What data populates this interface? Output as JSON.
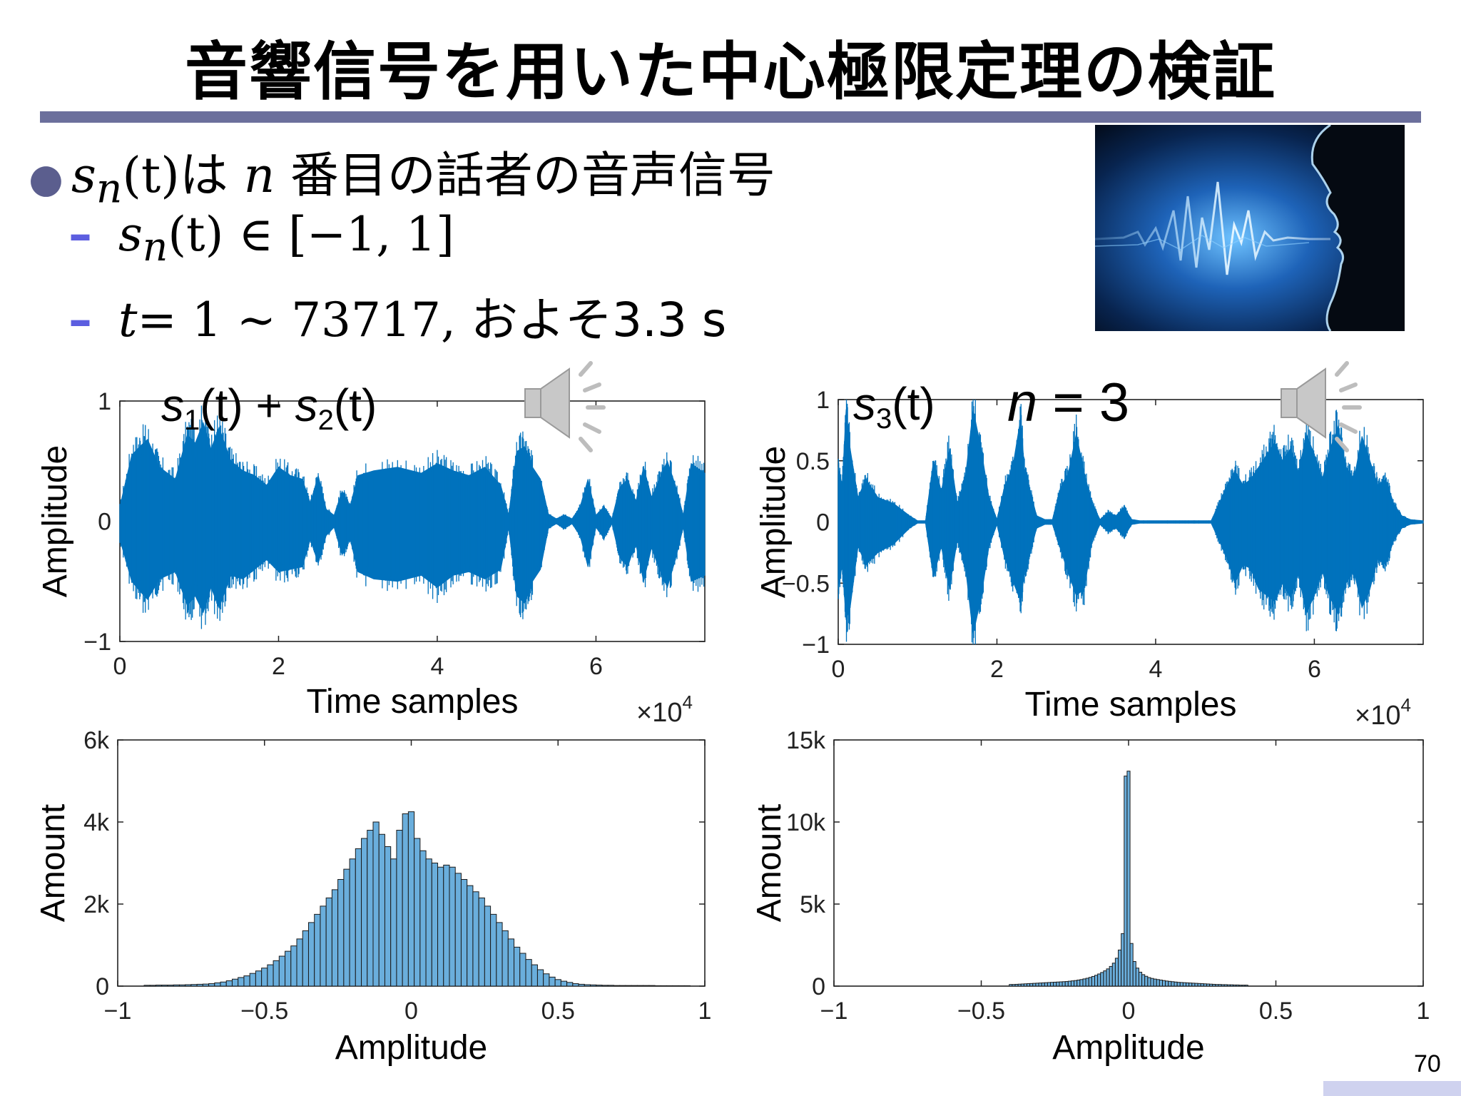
{
  "title": "音響信号を用いた中心極限定理の検証",
  "bullets": {
    "b1": {
      "math": "s",
      "sub": "n",
      "arg": "(t)",
      "text1": "は",
      "n": "n",
      "text2": "番目の話者の音声信号"
    },
    "sub1": {
      "math": "s",
      "sub": "n",
      "rest": "(t) ∈ [−1, 1]"
    },
    "sub2": {
      "t": "t",
      "eq": "= 1 ∼ 73717,",
      "text": " およそ3.3 s"
    }
  },
  "slide_number": "70",
  "icons": [
    "bullet-dot-icon",
    "speaker-icon",
    "voice-wave-photo"
  ],
  "colors": {
    "series": "#0072bd",
    "hist": "#6aaedc",
    "title_rule": "#6b6f9c",
    "dash": "#5c5ee0",
    "footer_bar": "#cfd2ef"
  },
  "chart_data": [
    {
      "type": "line",
      "overlay_label": {
        "s1": "s",
        "sub1": "1",
        "mid": "(t) + ",
        "s2": "s",
        "sub2": "2",
        "end": "(t)"
      },
      "xlabel": "Time samples",
      "ylabel": "Amplitude",
      "x_multiplier": "×10",
      "x_multiplier_exp": "4",
      "xlim": [
        0,
        73717
      ],
      "ylim": [
        -1,
        1
      ],
      "xticks": [
        0,
        20000,
        40000,
        60000
      ],
      "xticklabels": [
        "0",
        "2",
        "4",
        "6"
      ],
      "yticks": [
        -1,
        0,
        1
      ],
      "yticklabels": [
        "−1",
        "0",
        "1"
      ],
      "envelope": {
        "x": [
          0,
          1500,
          2500,
          3500,
          5000,
          7000,
          8500,
          9500,
          10500,
          11500,
          12500,
          14000,
          15500,
          17000,
          18500,
          20000,
          21500,
          23000,
          24000,
          25000,
          26000,
          27000,
          28000,
          29000,
          30000,
          32000,
          35000,
          38000,
          40000,
          42000,
          44000,
          46000,
          48000,
          49000,
          50000,
          51000,
          52000,
          53000,
          54000,
          55000,
          56000,
          57000,
          58000,
          59000,
          60000,
          61000,
          62000,
          63000,
          64000,
          65000,
          66000,
          67000,
          68000,
          69000,
          70000,
          71000,
          72000,
          73717
        ],
        "upper": [
          0.12,
          0.55,
          0.62,
          0.68,
          0.45,
          0.35,
          0.72,
          0.65,
          0.82,
          0.6,
          0.78,
          0.5,
          0.42,
          0.38,
          0.3,
          0.45,
          0.38,
          0.35,
          0.15,
          0.38,
          0.1,
          0.05,
          0.25,
          0.12,
          0.38,
          0.42,
          0.45,
          0.4,
          0.48,
          0.42,
          0.38,
          0.45,
          0.3,
          0.05,
          0.58,
          0.62,
          0.45,
          0.35,
          0.06,
          0.02,
          0.05,
          0.02,
          0.12,
          0.35,
          0.05,
          0.12,
          0.02,
          0.28,
          0.35,
          0.15,
          0.45,
          0.2,
          0.35,
          0.5,
          0.3,
          0.05,
          0.48,
          0.4
        ],
        "lower": [
          -0.15,
          -0.5,
          -0.58,
          -0.65,
          -0.48,
          -0.42,
          -0.7,
          -0.62,
          -0.76,
          -0.55,
          -0.72,
          -0.45,
          -0.48,
          -0.4,
          -0.32,
          -0.42,
          -0.4,
          -0.38,
          -0.15,
          -0.35,
          -0.12,
          -0.05,
          -0.28,
          -0.14,
          -0.42,
          -0.48,
          -0.5,
          -0.45,
          -0.55,
          -0.45,
          -0.42,
          -0.48,
          -0.4,
          -0.05,
          -0.62,
          -0.68,
          -0.5,
          -0.4,
          -0.06,
          -0.02,
          -0.06,
          -0.02,
          -0.12,
          -0.38,
          -0.05,
          -0.14,
          -0.02,
          -0.3,
          -0.38,
          -0.18,
          -0.5,
          -0.22,
          -0.4,
          -0.55,
          -0.32,
          -0.05,
          -0.5,
          -0.45
        ]
      }
    },
    {
      "type": "line",
      "overlay_label": {
        "s": "s",
        "sub": "3",
        "end": "(t)",
        "n": "n",
        "eq": " = 3"
      },
      "xlabel": "Time samples",
      "ylabel": "Amplitude",
      "x_multiplier": "×10",
      "x_multiplier_exp": "4",
      "xlim": [
        0,
        73717
      ],
      "ylim": [
        -1,
        1
      ],
      "xticks": [
        0,
        20000,
        40000,
        60000
      ],
      "xticklabels": [
        "0",
        "2",
        "4",
        "6"
      ],
      "yticks": [
        -1,
        -0.5,
        0,
        0.5,
        1
      ],
      "yticklabels": [
        "−1",
        "−0.5",
        "0",
        "0.5",
        "1"
      ],
      "envelope": {
        "x": [
          0,
          500,
          1000,
          1500,
          2500,
          3500,
          5000,
          7000,
          9000,
          10000,
          11000,
          12000,
          13000,
          14000,
          15000,
          16000,
          17000,
          18000,
          19000,
          20000,
          21000,
          22000,
          23000,
          23500,
          24000,
          25000,
          26000,
          27000,
          28000,
          29000,
          30000,
          31000,
          32000,
          33000,
          34000,
          35000,
          36000,
          37000,
          38000,
          39000,
          40000,
          41000,
          42000,
          43000,
          44000,
          45000,
          46000,
          47000,
          48000,
          49000,
          50000,
          51000,
          52000,
          53000,
          54000,
          55000,
          56000,
          57000,
          58000,
          59000,
          60000,
          61000,
          62000,
          63000,
          64000,
          65000,
          66000,
          67000,
          68000,
          69000,
          70000,
          71000,
          72000,
          73717
        ],
        "upper": [
          0.45,
          0.3,
          0.92,
          0.6,
          0.2,
          0.35,
          0.2,
          0.15,
          0.05,
          0.01,
          0.01,
          0.5,
          0.25,
          0.6,
          0.15,
          0.35,
          0.92,
          0.6,
          0.2,
          0.02,
          0.3,
          0.45,
          0.85,
          0.4,
          0.3,
          0.05,
          0.02,
          0.02,
          0.28,
          0.4,
          0.72,
          0.4,
          0.15,
          0.02,
          0.08,
          0.05,
          0.12,
          0.02,
          0.01,
          0.01,
          0.01,
          0.01,
          0.01,
          0.01,
          0.01,
          0.01,
          0.01,
          0.01,
          0.15,
          0.3,
          0.42,
          0.3,
          0.35,
          0.45,
          0.55,
          0.65,
          0.5,
          0.6,
          0.4,
          0.72,
          0.55,
          0.35,
          0.6,
          0.78,
          0.45,
          0.35,
          0.7,
          0.5,
          0.3,
          0.35,
          0.15,
          0.05,
          0.02,
          0.01
        ],
        "lower": [
          -0.55,
          -0.35,
          -0.8,
          -0.7,
          -0.2,
          -0.35,
          -0.25,
          -0.18,
          -0.05,
          -0.01,
          -0.01,
          -0.45,
          -0.2,
          -0.55,
          -0.15,
          -0.35,
          -0.92,
          -0.62,
          -0.2,
          -0.02,
          -0.3,
          -0.48,
          -0.65,
          -0.4,
          -0.3,
          -0.05,
          -0.02,
          -0.02,
          -0.22,
          -0.42,
          -0.6,
          -0.55,
          -0.15,
          -0.02,
          -0.08,
          -0.05,
          -0.12,
          -0.02,
          -0.01,
          -0.01,
          -0.01,
          -0.01,
          -0.01,
          -0.01,
          -0.01,
          -0.01,
          -0.01,
          -0.01,
          -0.15,
          -0.3,
          -0.5,
          -0.35,
          -0.38,
          -0.55,
          -0.6,
          -0.65,
          -0.5,
          -0.62,
          -0.42,
          -0.75,
          -0.6,
          -0.4,
          -0.62,
          -0.75,
          -0.5,
          -0.4,
          -0.7,
          -0.55,
          -0.3,
          -0.35,
          -0.15,
          -0.05,
          -0.02,
          -0.01
        ]
      }
    },
    {
      "type": "bar",
      "xlabel": "Amplitude",
      "ylabel": "Amount",
      "xlim": [
        -1,
        1
      ],
      "ylim": [
        0,
        6000
      ],
      "xticks": [
        -1,
        -0.5,
        0,
        0.5,
        1
      ],
      "xticklabels": [
        "−1",
        "−0.5",
        "0",
        "0.5",
        "1"
      ],
      "yticks": [
        0,
        2000,
        4000,
        6000
      ],
      "yticklabels": [
        "0",
        "2k",
        "4k",
        "6k"
      ],
      "bin_width": 0.02,
      "x": [
        -0.9,
        -0.88,
        -0.86,
        -0.84,
        -0.82,
        -0.8,
        -0.78,
        -0.76,
        -0.74,
        -0.72,
        -0.7,
        -0.68,
        -0.66,
        -0.64,
        -0.62,
        -0.6,
        -0.58,
        -0.56,
        -0.54,
        -0.52,
        -0.5,
        -0.48,
        -0.46,
        -0.44,
        -0.42,
        -0.4,
        -0.38,
        -0.36,
        -0.34,
        -0.32,
        -0.3,
        -0.28,
        -0.26,
        -0.24,
        -0.22,
        -0.2,
        -0.18,
        -0.16,
        -0.14,
        -0.12,
        -0.1,
        -0.08,
        -0.06,
        -0.04,
        -0.02,
        0,
        0.02,
        0.04,
        0.06,
        0.08,
        0.1,
        0.12,
        0.14,
        0.16,
        0.18,
        0.2,
        0.22,
        0.24,
        0.26,
        0.28,
        0.3,
        0.32,
        0.34,
        0.36,
        0.38,
        0.4,
        0.42,
        0.44,
        0.46,
        0.48,
        0.5,
        0.52,
        0.54,
        0.56,
        0.58,
        0.6,
        0.62,
        0.64,
        0.66,
        0.68,
        0.7,
        0.72,
        0.74,
        0.76,
        0.78,
        0.8,
        0.82,
        0.84,
        0.86,
        0.88,
        0.9,
        0.92,
        0.94
      ],
      "values": [
        20,
        20,
        25,
        25,
        25,
        30,
        30,
        35,
        40,
        45,
        50,
        60,
        80,
        100,
        130,
        170,
        210,
        250,
        310,
        370,
        440,
        520,
        620,
        730,
        850,
        980,
        1150,
        1350,
        1550,
        1750,
        1950,
        2150,
        2350,
        2600,
        2850,
        3100,
        3350,
        3600,
        3800,
        4000,
        3700,
        3400,
        3100,
        3800,
        4200,
        4250,
        3600,
        3300,
        3100,
        3000,
        2900,
        2950,
        2900,
        2750,
        2600,
        2450,
        2300,
        2150,
        1950,
        1750,
        1550,
        1350,
        1150,
        950,
        800,
        650,
        520,
        400,
        300,
        220,
        160,
        120,
        90,
        60,
        45,
        35,
        30,
        25,
        20,
        20,
        15,
        15,
        15,
        15,
        15,
        15,
        15,
        10,
        10,
        10,
        10,
        10,
        10
      ]
    },
    {
      "type": "bar",
      "xlabel": "Amplitude",
      "ylabel": "Amount",
      "xlim": [
        -1,
        1
      ],
      "ylim": [
        0,
        15000
      ],
      "xticks": [
        -1,
        -0.5,
        0,
        0.5,
        1
      ],
      "xticklabels": [
        "−1",
        "−0.5",
        "0",
        "0.5",
        "1"
      ],
      "yticks": [
        0,
        5000,
        10000,
        15000
      ],
      "yticklabels": [
        "0",
        "5k",
        "10k",
        "15k"
      ],
      "bin_width": 0.01,
      "x": [
        -0.4,
        -0.39,
        -0.38,
        -0.37,
        -0.36,
        -0.35,
        -0.34,
        -0.33,
        -0.32,
        -0.31,
        -0.3,
        -0.29,
        -0.28,
        -0.27,
        -0.26,
        -0.25,
        -0.24,
        -0.23,
        -0.22,
        -0.21,
        -0.2,
        -0.19,
        -0.18,
        -0.17,
        -0.16,
        -0.15,
        -0.14,
        -0.13,
        -0.12,
        -0.11,
        -0.1,
        -0.09,
        -0.08,
        -0.07,
        -0.06,
        -0.05,
        -0.04,
        -0.03,
        -0.02,
        -0.01,
        0,
        0.01,
        0.02,
        0.03,
        0.04,
        0.05,
        0.06,
        0.07,
        0.08,
        0.09,
        0.1,
        0.11,
        0.12,
        0.13,
        0.14,
        0.15,
        0.16,
        0.17,
        0.18,
        0.19,
        0.2,
        0.21,
        0.22,
        0.23,
        0.24,
        0.25,
        0.26,
        0.27,
        0.28,
        0.29,
        0.3,
        0.31,
        0.32,
        0.33,
        0.34,
        0.35,
        0.36,
        0.37,
        0.38,
        0.39,
        0.4
      ],
      "values": [
        100,
        100,
        110,
        120,
        130,
        140,
        150,
        160,
        170,
        180,
        190,
        200,
        210,
        220,
        230,
        240,
        250,
        260,
        270,
        280,
        300,
        320,
        340,
        370,
        400,
        440,
        480,
        530,
        590,
        660,
        740,
        830,
        930,
        1050,
        1200,
        1400,
        1700,
        2200,
        3200,
        12800,
        13100,
        2600,
        1500,
        1100,
        850,
        700,
        600,
        520,
        470,
        430,
        400,
        370,
        340,
        310,
        290,
        270,
        250,
        230,
        220,
        210,
        200,
        190,
        180,
        170,
        160,
        150,
        140,
        130,
        120,
        110,
        100,
        100,
        90,
        90,
        80,
        80,
        70,
        70,
        60,
        60,
        60
      ]
    }
  ]
}
